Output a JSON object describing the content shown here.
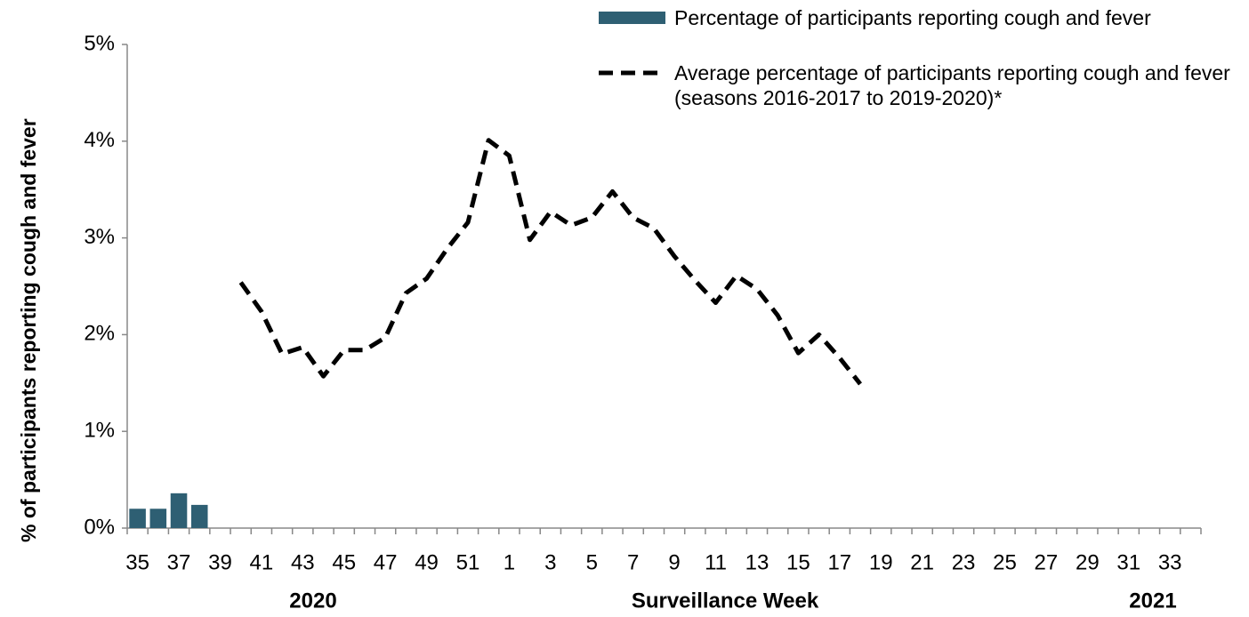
{
  "chart_data": {
    "type": "bar",
    "x_label": "Surveillance  Week",
    "y_label": "% of participants reporting cough and fever",
    "year_labels": [
      "2020",
      "2021"
    ],
    "categories": [
      "35",
      null,
      "37",
      null,
      "39",
      null,
      "41",
      null,
      "43",
      null,
      "45",
      null,
      "47",
      null,
      "49",
      null,
      "51",
      null,
      "1",
      null,
      "3",
      null,
      "5",
      null,
      "7",
      null,
      "9",
      null,
      "11",
      null,
      "13",
      null,
      "15",
      null,
      "17",
      null,
      "19",
      null,
      "21",
      null,
      "23",
      null,
      "25",
      null,
      "27",
      null,
      "29",
      null,
      "31",
      null,
      "33",
      null
    ],
    "series": [
      {
        "name": "Percentage of participants reporting cough and fever",
        "type": "bar",
        "color": "#2e5f73",
        "values": [
          0.2,
          0.2,
          0.36,
          0.24,
          null,
          null,
          null,
          null,
          null,
          null,
          null,
          null,
          null,
          null,
          null,
          null,
          null,
          null,
          null,
          null,
          null,
          null,
          null,
          null,
          null,
          null,
          null,
          null,
          null,
          null,
          null,
          null,
          null,
          null,
          null,
          null,
          null,
          null,
          null,
          null,
          null,
          null,
          null,
          null,
          null,
          null,
          null,
          null,
          null,
          null,
          null,
          null
        ]
      },
      {
        "name": "Average percentage of participants reporting cough and fever (seasons 2016-2017 to 2019-2020)*",
        "type": "line",
        "color": "#000000",
        "dashed": true,
        "values": [
          null,
          null,
          null,
          null,
          null,
          2.54,
          2.24,
          1.8,
          1.87,
          1.57,
          1.84,
          1.84,
          1.97,
          2.43,
          2.58,
          2.89,
          3.16,
          4.01,
          3.85,
          2.98,
          3.27,
          3.13,
          3.21,
          3.48,
          3.21,
          3.1,
          2.81,
          2.56,
          2.33,
          2.61,
          2.47,
          2.2,
          1.81,
          2.0,
          1.76,
          1.49,
          null,
          null,
          null,
          null,
          null,
          null,
          null,
          null,
          null,
          null,
          null,
          null,
          null,
          null,
          null,
          null
        ]
      }
    ],
    "ylim": [
      0,
      5
    ],
    "yticks": [
      {
        "value": 0,
        "label": "0%"
      },
      {
        "value": 1,
        "label": "1%"
      },
      {
        "value": 2,
        "label": "2%"
      },
      {
        "value": 3,
        "label": "3%"
      },
      {
        "value": 4,
        "label": "4%"
      },
      {
        "value": 5,
        "label": "5%"
      }
    ],
    "grid": false
  }
}
